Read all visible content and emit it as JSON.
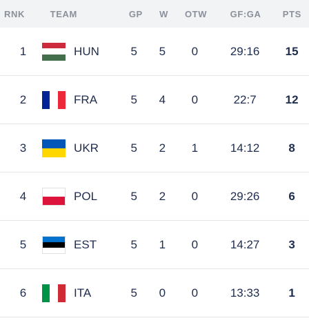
{
  "headers": {
    "rnk": "RNK",
    "team": "TEAM",
    "gp": "GP",
    "w": "W",
    "otw": "OTW",
    "gfga": "GF:GA",
    "pts": "PTS"
  },
  "rows": [
    {
      "rank": "1",
      "team": "HUN",
      "flag_icon": "hungary-flag-icon",
      "flag_colors": [
        "#cd2a3e",
        "#ffffff",
        "#436f4d"
      ],
      "gp": "5",
      "w": "5",
      "otw": "0",
      "gfga": "29:16",
      "pts": "15"
    },
    {
      "rank": "2",
      "team": "FRA",
      "flag_icon": "france-flag-icon",
      "flag_colors": [
        "#002395",
        "#ffffff",
        "#ed2939"
      ],
      "gp": "5",
      "w": "4",
      "otw": "0",
      "gfga": "22:7",
      "pts": "12"
    },
    {
      "rank": "3",
      "team": "UKR",
      "flag_icon": "ukraine-flag-icon",
      "flag_colors": [
        "#0057b7",
        "#ffd700"
      ],
      "gp": "5",
      "w": "2",
      "otw": "1",
      "gfga": "14:12",
      "pts": "8"
    },
    {
      "rank": "4",
      "team": "POL",
      "flag_icon": "poland-flag-icon",
      "flag_colors": [
        "#ffffff",
        "#dc143c"
      ],
      "gp": "5",
      "w": "2",
      "otw": "0",
      "gfga": "29:26",
      "pts": "6"
    },
    {
      "rank": "5",
      "team": "EST",
      "flag_icon": "estonia-flag-icon",
      "flag_colors": [
        "#0072ce",
        "#000000",
        "#ffffff"
      ],
      "gp": "5",
      "w": "1",
      "otw": "0",
      "gfga": "14:27",
      "pts": "3"
    },
    {
      "rank": "6",
      "team": "ITA",
      "flag_icon": "italy-flag-icon",
      "flag_colors": [
        "#009246",
        "#ffffff",
        "#ce2b37"
      ],
      "gp": "5",
      "w": "0",
      "otw": "0",
      "gfga": "13:33",
      "pts": "1"
    }
  ]
}
